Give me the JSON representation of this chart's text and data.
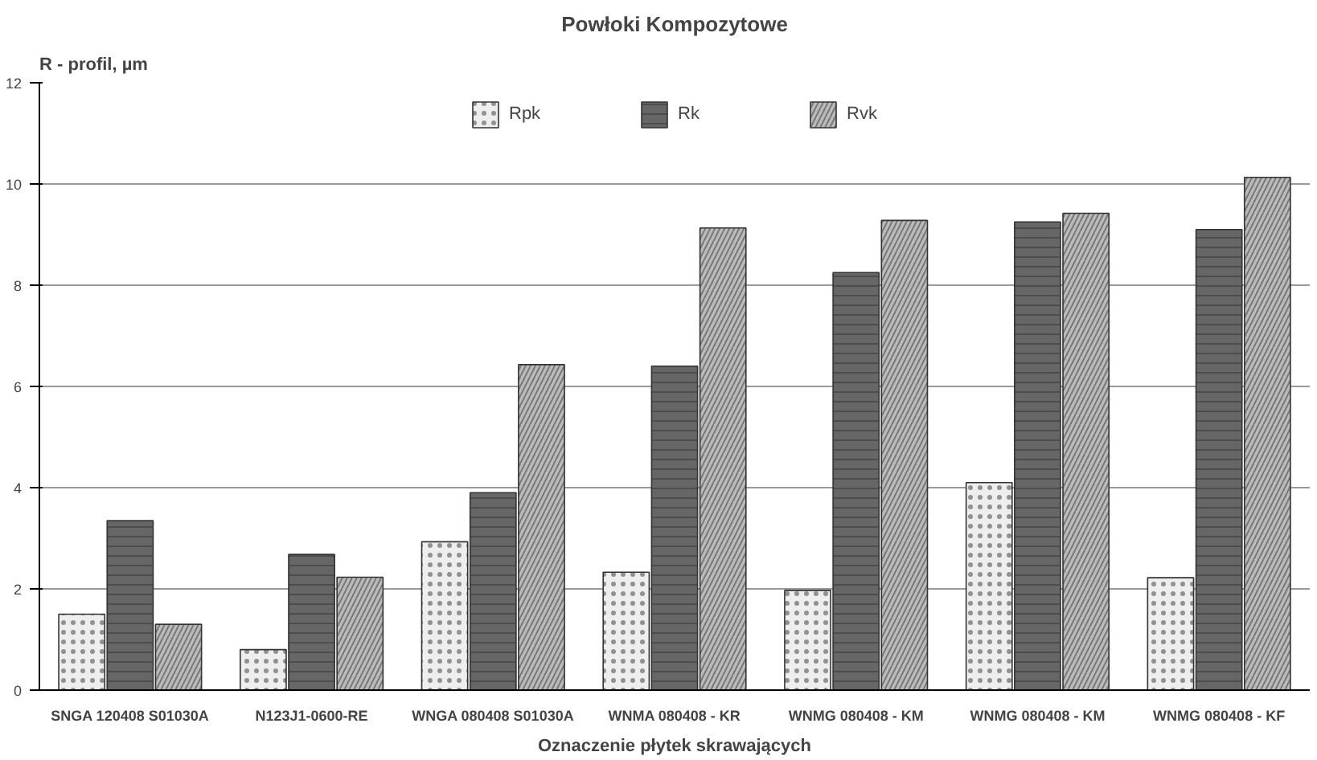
{
  "chart_data": {
    "type": "bar",
    "title": "Powłoki Kompozytowe",
    "ylabel": "R - profil, µm",
    "xlabel": "Oznaczenie płytek skrawających",
    "categories": [
      "SNGA 120408 S01030A",
      "N123J1-0600-RE",
      "WNGA 080408 S01030A",
      "WNMA 080408 - KR",
      "WNMG 080408 - KM",
      "WNMG 080408 - KM",
      "WNMG 080408 - KF"
    ],
    "series": [
      {
        "name": "Rpk",
        "color": "#eeeeee",
        "values": [
          1.5,
          0.8,
          2.93,
          2.33,
          1.97,
          4.1,
          2.22
        ]
      },
      {
        "name": "Rk",
        "color": "#666666",
        "values": [
          3.35,
          2.68,
          3.9,
          6.4,
          8.25,
          9.25,
          9.1
        ]
      },
      {
        "name": "Rvk",
        "color": "#bbbbbb",
        "values": [
          1.3,
          2.23,
          6.43,
          9.13,
          9.28,
          9.42,
          10.13
        ]
      }
    ],
    "ylim": [
      0,
      12
    ],
    "yticks": [
      0,
      2,
      4,
      6,
      8,
      10,
      12
    ],
    "grid": "y",
    "legend": "top"
  }
}
